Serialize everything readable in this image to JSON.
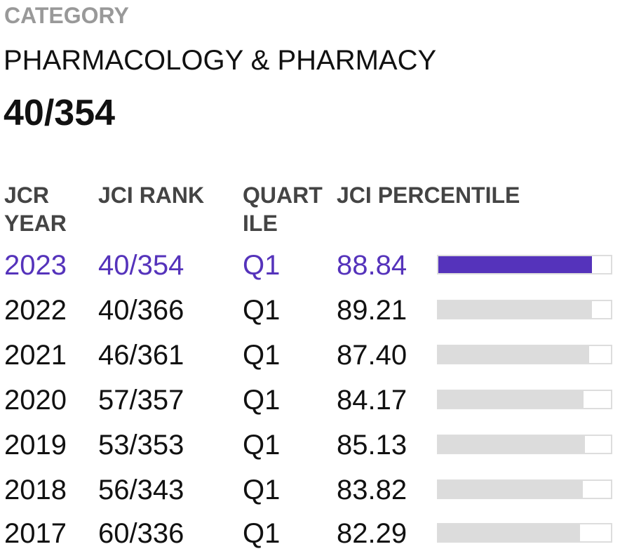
{
  "category": {
    "label": "CATEGORY",
    "name": "PHARMACOLOGY & PHARMACY",
    "rank": "40/354"
  },
  "table": {
    "headers": {
      "year": "JCR YEAR",
      "rank": "JCI RANK",
      "quartile": "QUART ILE",
      "percentile": "JCI PERCENTILE"
    },
    "rows": [
      {
        "year": "2023",
        "rank": "40/354",
        "quartile": "Q1",
        "percentile": "88.84",
        "percentile_value": 88.84,
        "current": true
      },
      {
        "year": "2022",
        "rank": "40/366",
        "quartile": "Q1",
        "percentile": "89.21",
        "percentile_value": 89.21,
        "current": false
      },
      {
        "year": "2021",
        "rank": "46/361",
        "quartile": "Q1",
        "percentile": "87.40",
        "percentile_value": 87.4,
        "current": false
      },
      {
        "year": "2020",
        "rank": "57/357",
        "quartile": "Q1",
        "percentile": "84.17",
        "percentile_value": 84.17,
        "current": false
      },
      {
        "year": "2019",
        "rank": "53/353",
        "quartile": "Q1",
        "percentile": "85.13",
        "percentile_value": 85.13,
        "current": false
      },
      {
        "year": "2018",
        "rank": "56/343",
        "quartile": "Q1",
        "percentile": "83.82",
        "percentile_value": 83.82,
        "current": false
      },
      {
        "year": "2017",
        "rank": "60/336",
        "quartile": "Q1",
        "percentile": "82.29",
        "percentile_value": 82.29,
        "current": false
      }
    ]
  },
  "colors": {
    "accent": "#5533bb",
    "bar_inactive": "#dcdcdc",
    "label_gray": "#999999"
  }
}
